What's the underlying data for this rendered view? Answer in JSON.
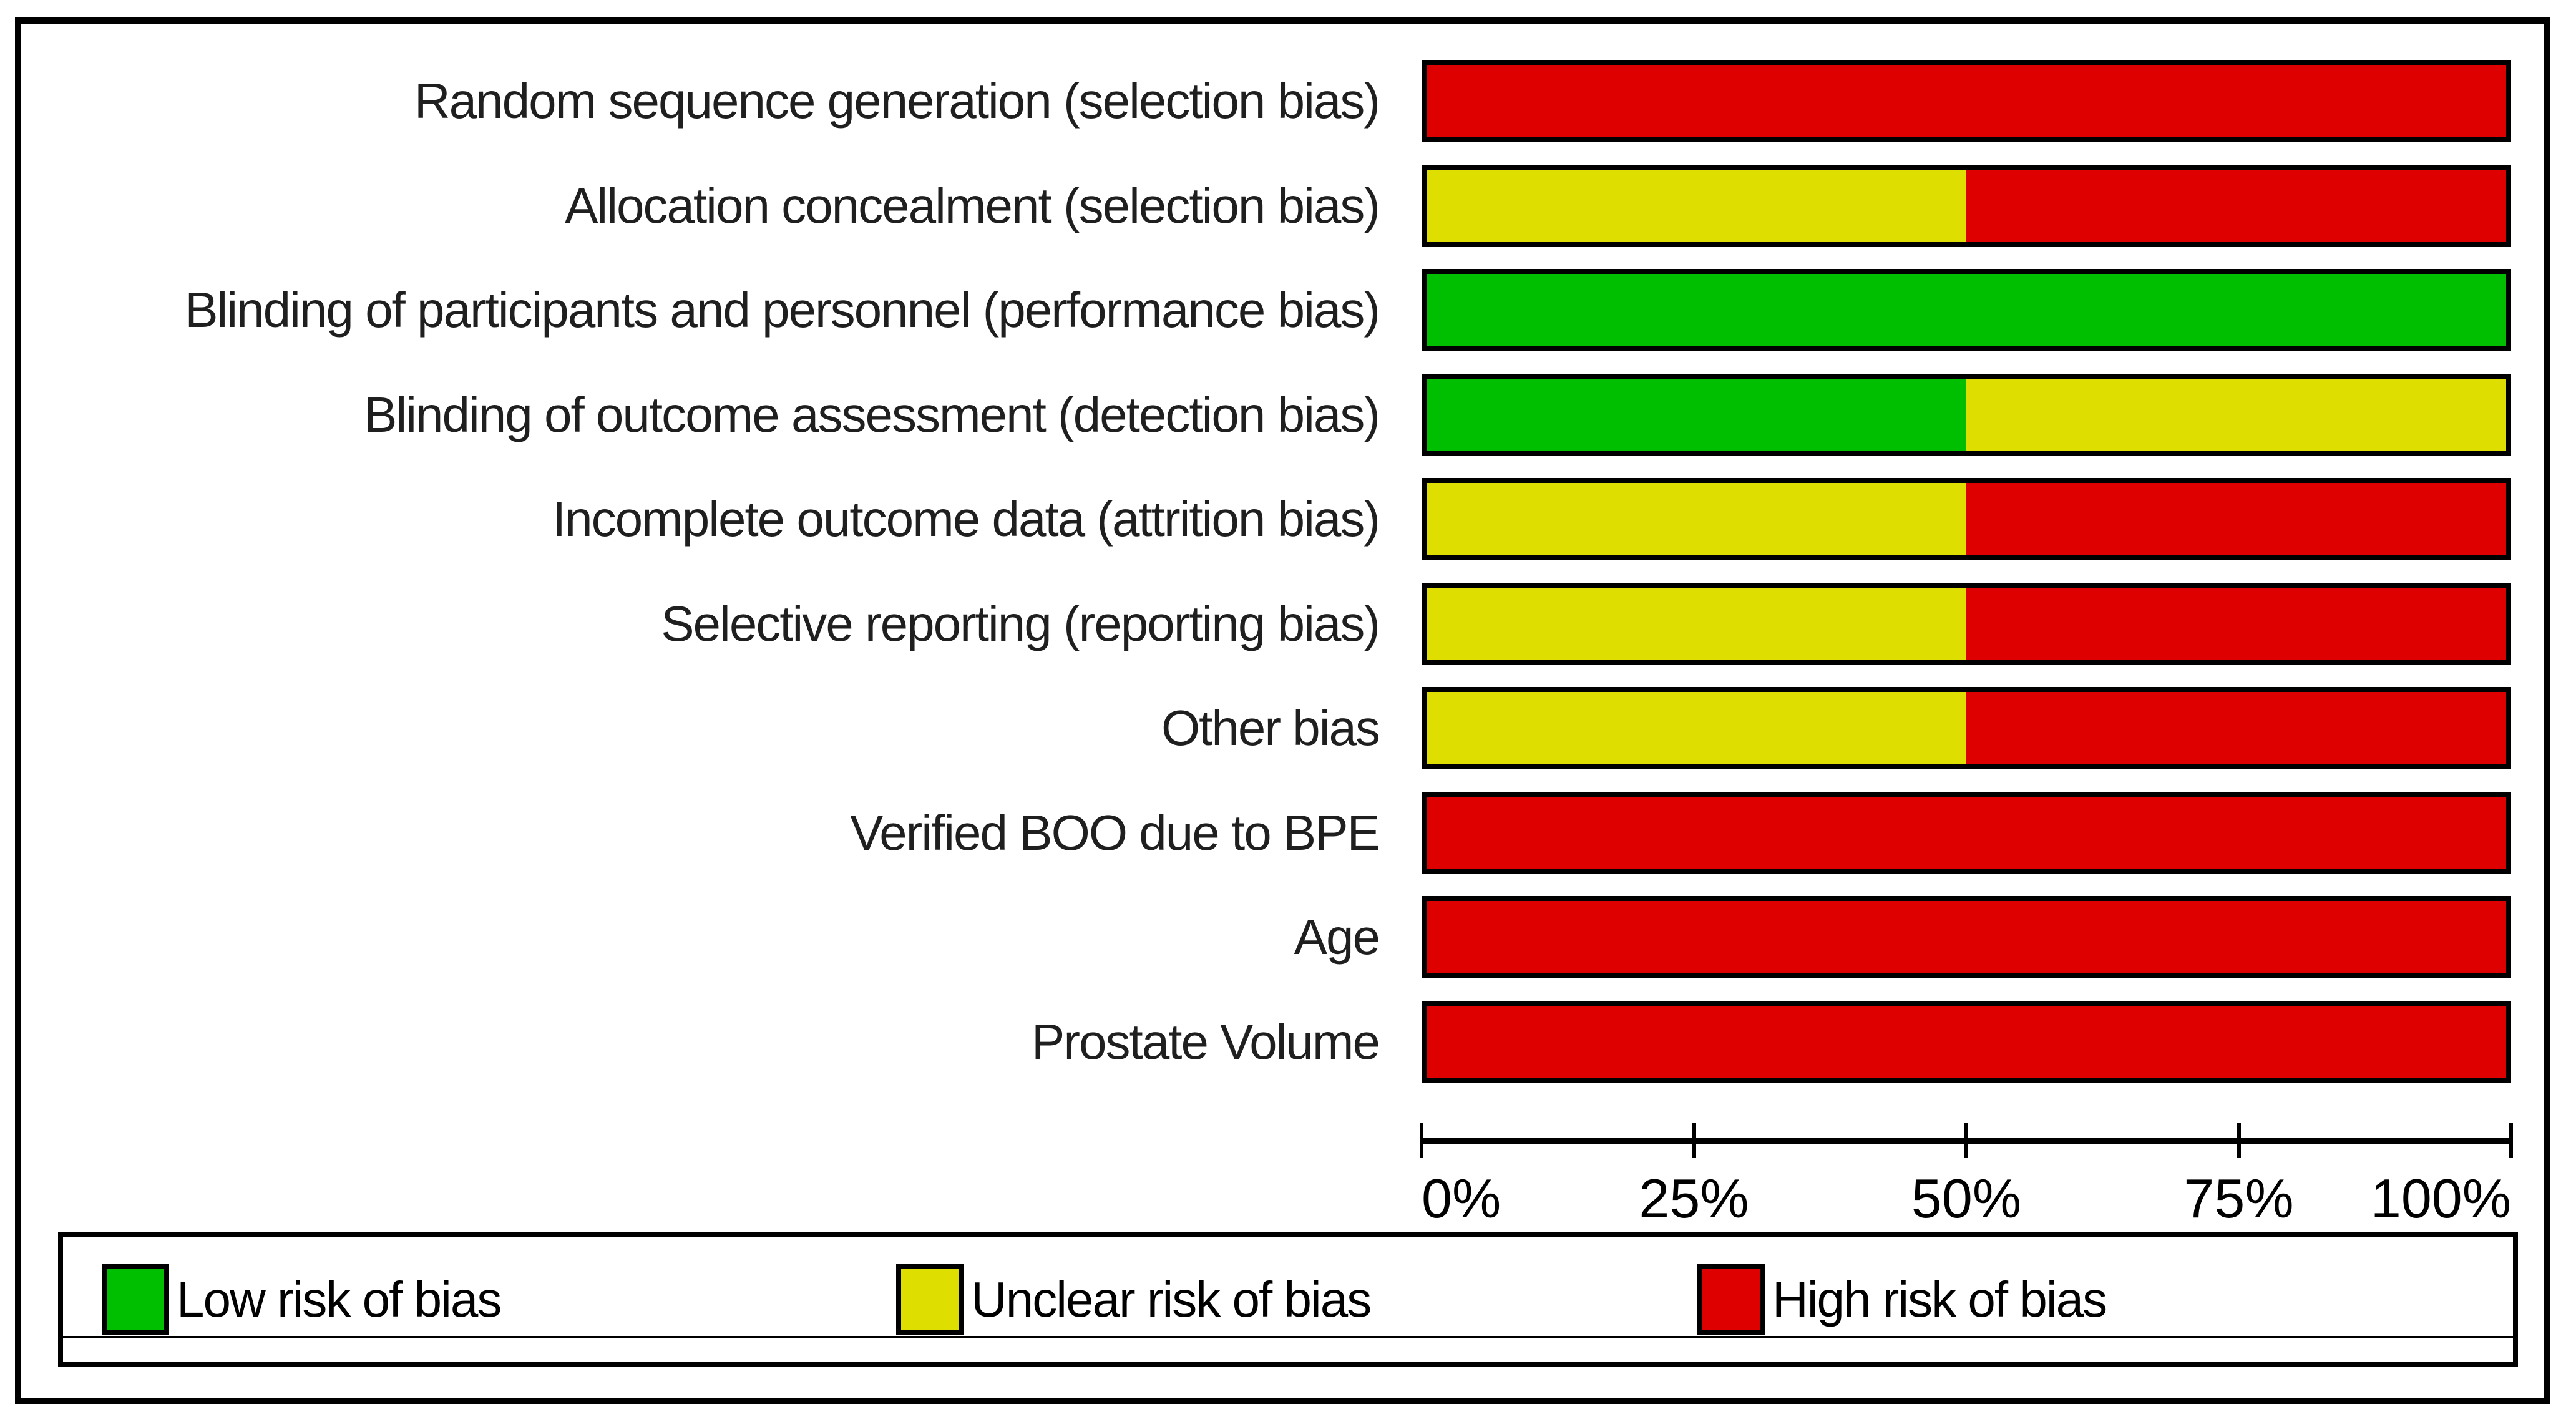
{
  "colors": {
    "low": "#00BE00",
    "unclear": "#DEDE00",
    "high": "#DE0000",
    "outline": "#000000"
  },
  "chart_data": {
    "type": "bar",
    "orientation": "horizontal-stacked",
    "title": "",
    "xlabel": "",
    "ylabel": "",
    "categories": [
      "Random sequence generation (selection bias)",
      "Allocation concealment (selection bias)",
      "Blinding of participants and personnel (performance bias)",
      "Blinding of outcome assessment (detection bias)",
      "Incomplete outcome data (attrition bias)",
      "Selective reporting (reporting bias)",
      "Other bias",
      "Verified BOO due to BPE",
      "Age",
      "Prostate Volume"
    ],
    "series": [
      {
        "name": "Low risk of bias",
        "risk": "low",
        "color": "#00BE00",
        "values": [
          0,
          0,
          100,
          50,
          0,
          0,
          0,
          0,
          0,
          0
        ]
      },
      {
        "name": "Unclear risk of bias",
        "risk": "unclear",
        "color": "#DEDE00",
        "values": [
          0,
          50,
          0,
          50,
          50,
          50,
          50,
          0,
          0,
          0
        ]
      },
      {
        "name": "High risk of bias",
        "risk": "high",
        "color": "#DE0000",
        "values": [
          100,
          50,
          0,
          0,
          50,
          50,
          50,
          100,
          100,
          100
        ]
      }
    ],
    "xlim": [
      0,
      100
    ],
    "xticks": [
      "0%",
      "25%",
      "50%",
      "75%",
      "100%"
    ],
    "grid": false,
    "legend_position": "bottom"
  }
}
